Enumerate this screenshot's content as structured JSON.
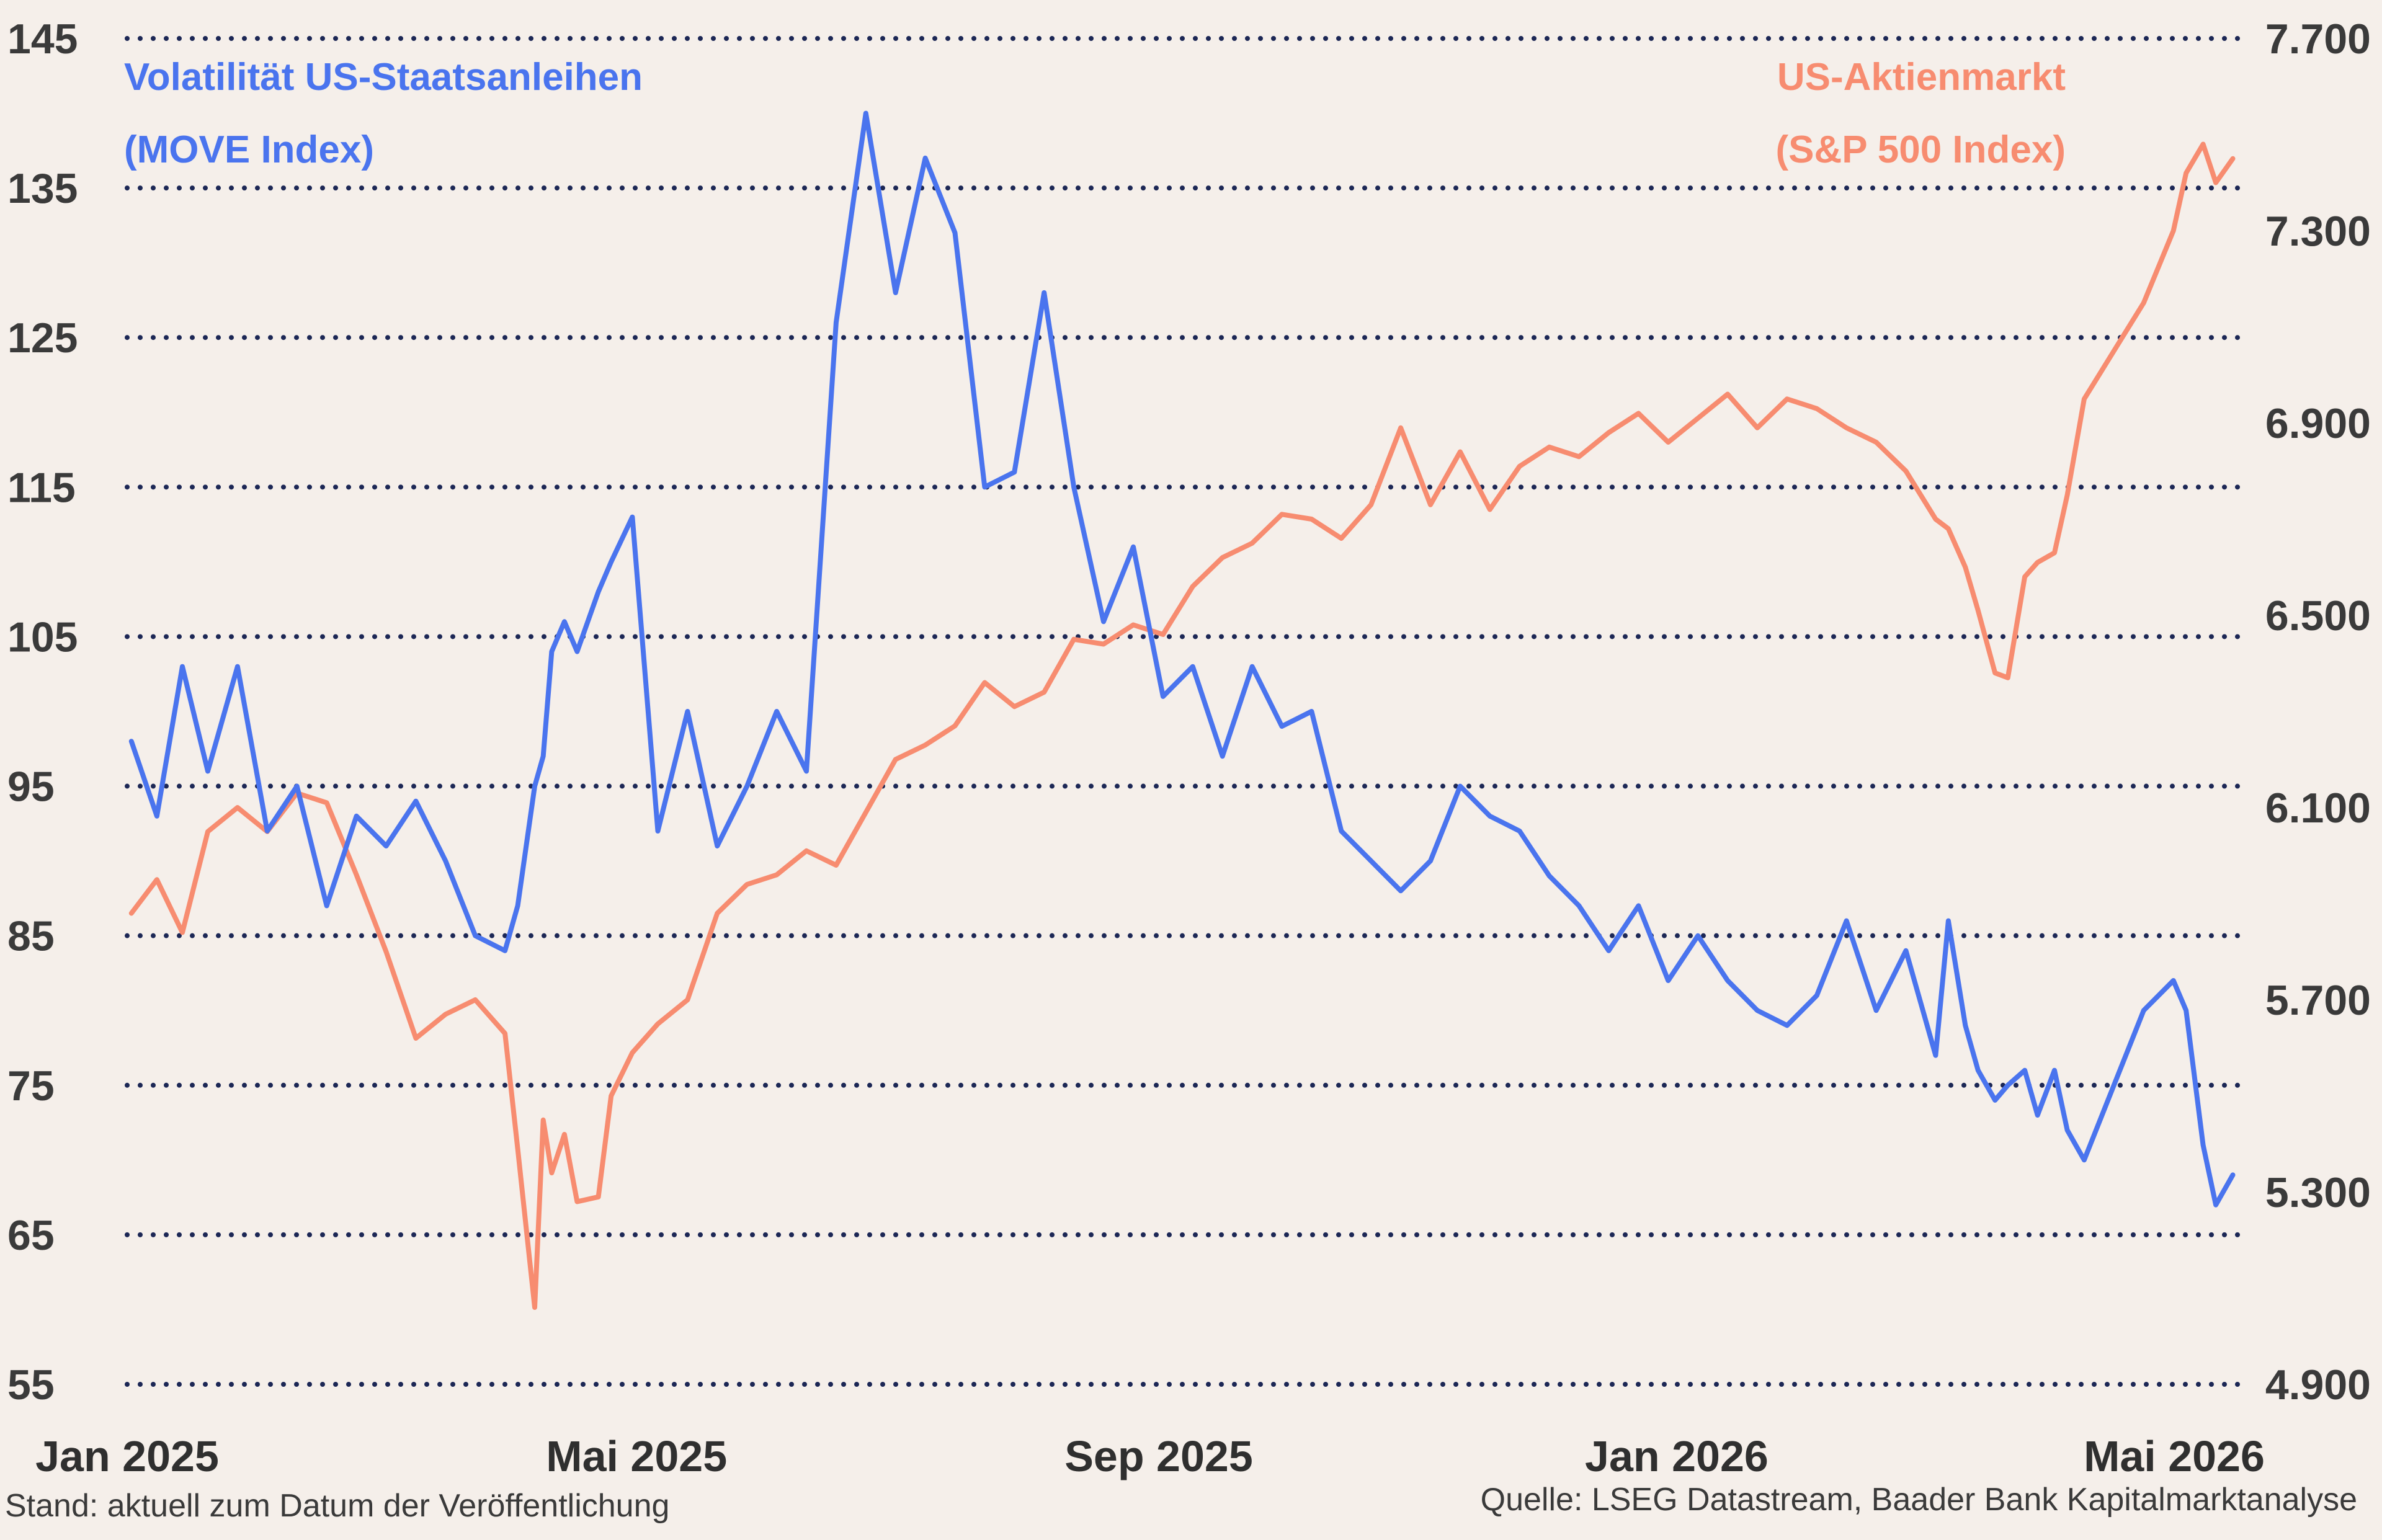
{
  "chart_data": {
    "type": "line",
    "colors": {
      "move": "#4a74ee",
      "spx": "#f78c70",
      "grid": "#1c2755",
      "background": "#f5efea"
    },
    "y_left": {
      "ticks": [
        "145",
        "135",
        "125",
        "115",
        "105",
        "95",
        "85",
        "75",
        "65",
        "55"
      ],
      "range": [
        55,
        145
      ]
    },
    "y_right": {
      "ticks": [
        "7.700",
        "7.300",
        "6.900",
        "6.500",
        "6.100",
        "5.700",
        "5.300",
        "4.900"
      ],
      "range": [
        4900,
        7700
      ]
    },
    "x_axis": {
      "ticks": [
        "Jan 2025",
        "Mai 2025",
        "Sep 2025",
        "Jan 2026",
        "Mai 2026"
      ],
      "range": [
        "2025-01-01",
        "2026-05-15"
      ]
    },
    "grid": "horizontal-dotted",
    "series": [
      {
        "name": "Volatilität US-Staatsanleihen",
        "name_line2": "(MOVE Index)",
        "axis": "left",
        "x": [
          "2025-01-02",
          "2025-01-08",
          "2025-01-14",
          "2025-01-20",
          "2025-01-27",
          "2025-02-03",
          "2025-02-10",
          "2025-02-17",
          "2025-02-24",
          "2025-03-03",
          "2025-03-10",
          "2025-03-17",
          "2025-03-24",
          "2025-03-31",
          "2025-04-03",
          "2025-04-07",
          "2025-04-09",
          "2025-04-11",
          "2025-04-14",
          "2025-04-17",
          "2025-04-22",
          "2025-04-25",
          "2025-04-30",
          "2025-05-06",
          "2025-05-13",
          "2025-05-20",
          "2025-05-27",
          "2025-06-03",
          "2025-06-10",
          "2025-06-17",
          "2025-06-24",
          "2025-07-01",
          "2025-07-08",
          "2025-07-15",
          "2025-07-22",
          "2025-07-29",
          "2025-08-05",
          "2025-08-12",
          "2025-08-19",
          "2025-08-26",
          "2025-09-02",
          "2025-09-09",
          "2025-09-16",
          "2025-09-23",
          "2025-09-30",
          "2025-10-07",
          "2025-10-14",
          "2025-10-21",
          "2025-10-28",
          "2025-11-04",
          "2025-11-11",
          "2025-11-18",
          "2025-11-25",
          "2025-12-02",
          "2025-12-09",
          "2025-12-16",
          "2025-12-23",
          "2025-12-30",
          "2026-01-06",
          "2026-01-13",
          "2026-01-20",
          "2026-01-27",
          "2026-02-03",
          "2026-02-10",
          "2026-02-17",
          "2026-02-24",
          "2026-03-03",
          "2026-03-06",
          "2026-03-10",
          "2026-03-13",
          "2026-03-17",
          "2026-03-20",
          "2026-03-24",
          "2026-03-27",
          "2026-03-31",
          "2026-04-03",
          "2026-04-07",
          "2026-04-14",
          "2026-04-21",
          "2026-04-28",
          "2026-05-01",
          "2026-05-05",
          "2026-05-08",
          "2026-05-12"
        ],
        "values": [
          98,
          93,
          103,
          96,
          103,
          92,
          95,
          87,
          93,
          91,
          94,
          90,
          85,
          84,
          87,
          95,
          97,
          104,
          106,
          104,
          108,
          110,
          113,
          92,
          100,
          91,
          95,
          100,
          96,
          126,
          140,
          128,
          137,
          132,
          115,
          116,
          128,
          115,
          106,
          111,
          101,
          103,
          97,
          103,
          99,
          100,
          92,
          90,
          88,
          90,
          95,
          93,
          92,
          89,
          87,
          84,
          87,
          82,
          85,
          82,
          80,
          79,
          81,
          86,
          80,
          84,
          77,
          86,
          79,
          76,
          74,
          75,
          76,
          73,
          76,
          72,
          70,
          75,
          80,
          82,
          80,
          71,
          67,
          69
        ],
        "values_note": ""
      },
      {
        "name": "US-Aktienmarkt",
        "name_line2": "(S&P 500 Index)",
        "axis": "right",
        "x": [
          "2025-01-02",
          "2025-01-08",
          "2025-01-14",
          "2025-01-20",
          "2025-01-27",
          "2025-02-03",
          "2025-02-10",
          "2025-02-17",
          "2025-02-24",
          "2025-03-03",
          "2025-03-10",
          "2025-03-17",
          "2025-03-24",
          "2025-03-31",
          "2025-04-03",
          "2025-04-07",
          "2025-04-09",
          "2025-04-11",
          "2025-04-14",
          "2025-04-17",
          "2025-04-22",
          "2025-04-25",
          "2025-04-30",
          "2025-05-06",
          "2025-05-13",
          "2025-05-20",
          "2025-05-27",
          "2025-06-03",
          "2025-06-10",
          "2025-06-17",
          "2025-06-24",
          "2025-07-01",
          "2025-07-08",
          "2025-07-15",
          "2025-07-22",
          "2025-07-29",
          "2025-08-05",
          "2025-08-12",
          "2025-08-19",
          "2025-08-26",
          "2025-09-02",
          "2025-09-09",
          "2025-09-16",
          "2025-09-23",
          "2025-09-30",
          "2025-10-07",
          "2025-10-14",
          "2025-10-21",
          "2025-10-28",
          "2025-11-04",
          "2025-11-11",
          "2025-11-18",
          "2025-11-25",
          "2025-12-02",
          "2025-12-09",
          "2025-12-16",
          "2025-12-23",
          "2025-12-30",
          "2026-01-06",
          "2026-01-13",
          "2026-01-20",
          "2026-01-27",
          "2026-02-03",
          "2026-02-10",
          "2026-02-17",
          "2026-02-24",
          "2026-03-03",
          "2026-03-06",
          "2026-03-10",
          "2026-03-13",
          "2026-03-17",
          "2026-03-20",
          "2026-03-24",
          "2026-03-27",
          "2026-03-31",
          "2026-04-03",
          "2026-04-07",
          "2026-04-14",
          "2026-04-21",
          "2026-04-28",
          "2026-05-01",
          "2026-05-05",
          "2026-05-08",
          "2026-05-12"
        ],
        "values": [
          5880,
          5950,
          5840,
          6050,
          6100,
          6050,
          6130,
          6110,
          5960,
          5800,
          5620,
          5670,
          5700,
          5630,
          5390,
          5060,
          5450,
          5340,
          5420,
          5280,
          5290,
          5500,
          5590,
          5650,
          5700,
          5880,
          5940,
          5960,
          6010,
          5980,
          6090,
          6200,
          6230,
          6270,
          6360,
          6310,
          6340,
          6450,
          6440,
          6480,
          6460,
          6560,
          6620,
          6650,
          6710,
          6700,
          6660,
          6730,
          6890,
          6730,
          6840,
          6720,
          6810,
          6850,
          6830,
          6880,
          6920,
          6860,
          6910,
          6960,
          6890,
          6950,
          6930,
          6890,
          6860,
          6800,
          6700,
          6680,
          6600,
          6510,
          6380,
          6370,
          6580,
          6610,
          6630,
          6750,
          6950,
          7050,
          7150,
          7300,
          7420,
          7480,
          7400,
          7450
        ],
        "values_note": ""
      }
    ],
    "footnote_left": "Stand: aktuell zum Datum der Veröffentlichung",
    "footnote_right": "Quelle: LSEG Datastream, Baader Bank Kapitalmarktanalyse"
  }
}
